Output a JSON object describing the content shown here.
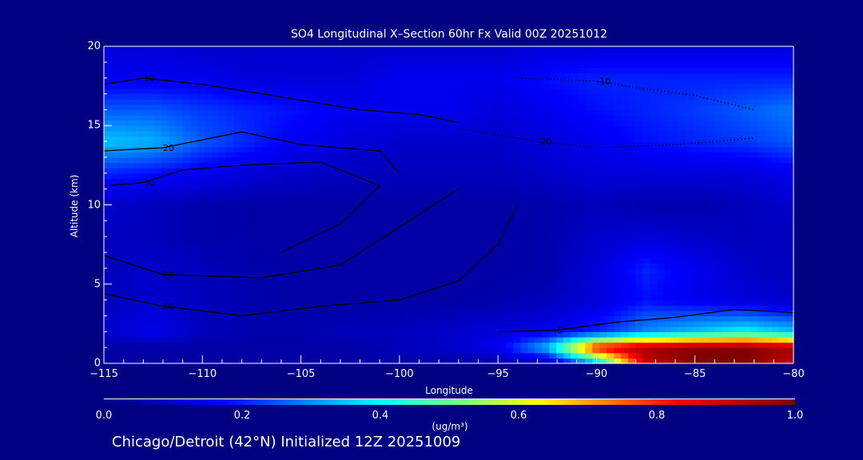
{
  "chart_data": {
    "type": "heatmap",
    "title": "SO4 Longitudinal X–Section 60hr  Fx Valid 00Z 20251012",
    "xlabel": "Longitude",
    "ylabel": "Altitude (km)",
    "xlim": [
      -115,
      -80
    ],
    "ylim": [
      0,
      20
    ],
    "xticks": [
      "−115",
      "−110",
      "−105",
      "−100",
      "−95",
      "−90",
      "−85",
      "−80"
    ],
    "xtick_values": [
      -115,
      -110,
      -105,
      -100,
      -95,
      -90,
      -85,
      -80
    ],
    "yticks": [
      "0",
      "5",
      "10",
      "15",
      "20"
    ],
    "ytick_values": [
      0,
      5,
      10,
      15,
      20
    ],
    "lon": [
      -115,
      -112.5,
      -110,
      -107.5,
      -105,
      -102.5,
      -100,
      -97.5,
      -95,
      -92.5,
      -90,
      -87.5,
      -85,
      -82.5,
      -80
    ],
    "alt": [
      0,
      1,
      2,
      4,
      6,
      8,
      10,
      12,
      14,
      16,
      18,
      20
    ],
    "values": [
      [
        0.05,
        0.05,
        0.05,
        0.05,
        0.05,
        0.05,
        0.05,
        0.05,
        0.05,
        0.05,
        0.3,
        0.9,
        1.0,
        1.0,
        0.9
      ],
      [
        0.05,
        0.05,
        0.05,
        0.05,
        0.05,
        0.05,
        0.08,
        0.1,
        0.15,
        0.35,
        0.85,
        0.95,
        1.0,
        1.0,
        0.95
      ],
      [
        0.1,
        0.15,
        0.08,
        0.06,
        0.06,
        0.08,
        0.08,
        0.1,
        0.12,
        0.15,
        0.2,
        0.3,
        0.35,
        0.4,
        0.35
      ],
      [
        0.08,
        0.1,
        0.08,
        0.06,
        0.05,
        0.05,
        0.05,
        0.05,
        0.06,
        0.08,
        0.12,
        0.18,
        0.15,
        0.12,
        0.1
      ],
      [
        0.08,
        0.1,
        0.08,
        0.06,
        0.05,
        0.05,
        0.05,
        0.05,
        0.05,
        0.06,
        0.12,
        0.2,
        0.15,
        0.1,
        0.08
      ],
      [
        0.08,
        0.08,
        0.06,
        0.05,
        0.05,
        0.05,
        0.05,
        0.05,
        0.05,
        0.06,
        0.1,
        0.12,
        0.1,
        0.08,
        0.08
      ],
      [
        0.1,
        0.08,
        0.06,
        0.05,
        0.05,
        0.05,
        0.05,
        0.05,
        0.05,
        0.06,
        0.08,
        0.06,
        0.06,
        0.08,
        0.1
      ],
      [
        0.2,
        0.18,
        0.15,
        0.12,
        0.1,
        0.08,
        0.08,
        0.08,
        0.08,
        0.1,
        0.12,
        0.12,
        0.12,
        0.12,
        0.15
      ],
      [
        0.35,
        0.33,
        0.25,
        0.2,
        0.15,
        0.12,
        0.1,
        0.1,
        0.1,
        0.12,
        0.15,
        0.18,
        0.2,
        0.22,
        0.25
      ],
      [
        0.25,
        0.25,
        0.22,
        0.2,
        0.18,
        0.15,
        0.15,
        0.15,
        0.12,
        0.15,
        0.18,
        0.2,
        0.22,
        0.25,
        0.28
      ],
      [
        0.15,
        0.15,
        0.15,
        0.12,
        0.12,
        0.12,
        0.15,
        0.15,
        0.15,
        0.18,
        0.2,
        0.2,
        0.2,
        0.2,
        0.2
      ],
      [
        0.12,
        0.12,
        0.1,
        0.1,
        0.1,
        0.1,
        0.1,
        0.1,
        0.1,
        0.12,
        0.12,
        0.12,
        0.12,
        0.12,
        0.12
      ]
    ],
    "colorbar": {
      "range": [
        0.0,
        1.0
      ],
      "ticks": [
        "0.0",
        "0.2",
        "0.4",
        "0.6",
        "0.8",
        "1.0"
      ],
      "tick_values": [
        0.0,
        0.2,
        0.4,
        0.6,
        0.8,
        1.0
      ],
      "unit": "(ug/m³)",
      "stops": [
        [
          0,
          "#000080"
        ],
        [
          0.17,
          "#0000ff"
        ],
        [
          0.4,
          "#00ffff"
        ],
        [
          0.52,
          "#80ff80"
        ],
        [
          0.63,
          "#ffff00"
        ],
        [
          0.83,
          "#ff0000"
        ],
        [
          1,
          "#800000"
        ]
      ]
    },
    "contours": [
      {
        "label": "10",
        "points": [
          [
            -115,
            17.6
          ],
          [
            -113,
            18
          ],
          [
            -110,
            17.6
          ],
          [
            -106,
            16.8
          ],
          [
            -102,
            16
          ],
          [
            -99,
            15.7
          ],
          [
            -97,
            15.2
          ]
        ]
      },
      {
        "label": "20",
        "points": [
          [
            -115,
            13.4
          ],
          [
            -112,
            13.6
          ],
          [
            -108,
            14.6
          ],
          [
            -105,
            13.8
          ],
          [
            -101,
            13.4
          ],
          [
            -100,
            12
          ]
        ]
      },
      {
        "label": "30",
        "points": [
          [
            -115,
            11.2
          ],
          [
            -113,
            11.4
          ],
          [
            -111,
            12.2
          ],
          [
            -108,
            12.5
          ],
          [
            -104,
            12.7
          ],
          [
            -101,
            11.2
          ],
          [
            -103,
            8.8
          ],
          [
            -106,
            7
          ]
        ]
      },
      {
        "label": "20",
        "points": [
          [
            -115,
            6.8
          ],
          [
            -112,
            5.6
          ],
          [
            -107,
            5.4
          ],
          [
            -103,
            6.2
          ],
          [
            -100,
            8.6
          ],
          [
            -97,
            11
          ]
        ]
      },
      {
        "label": "10",
        "points": [
          [
            -115,
            4.4
          ],
          [
            -112,
            3.6
          ],
          [
            -108,
            3
          ],
          [
            -104,
            3.6
          ],
          [
            -100,
            4
          ],
          [
            -97,
            5.2
          ],
          [
            -95,
            7.5
          ],
          [
            -94,
            10
          ]
        ]
      },
      {
        "label": "-10",
        "points": [
          [
            -94,
            18
          ],
          [
            -90,
            17.8
          ],
          [
            -88,
            17.4
          ],
          [
            -85,
            16.9
          ],
          [
            -82,
            16
          ]
        ]
      },
      {
        "label": "-20",
        "points": [
          [
            -97,
            14.8
          ],
          [
            -93,
            14
          ],
          [
            -90,
            13.6
          ],
          [
            -86,
            13.8
          ],
          [
            -82,
            14.2
          ]
        ]
      },
      {
        "label": "5",
        "points": [
          [
            -95,
            2
          ],
          [
            -92,
            2.1
          ],
          [
            -89,
            2.6
          ],
          [
            -86,
            2.9
          ],
          [
            -83,
            3.4
          ],
          [
            -80,
            3.2
          ]
        ]
      }
    ]
  },
  "footer": "Chicago/Detroit (42°N) Initialized 12Z 20251009"
}
